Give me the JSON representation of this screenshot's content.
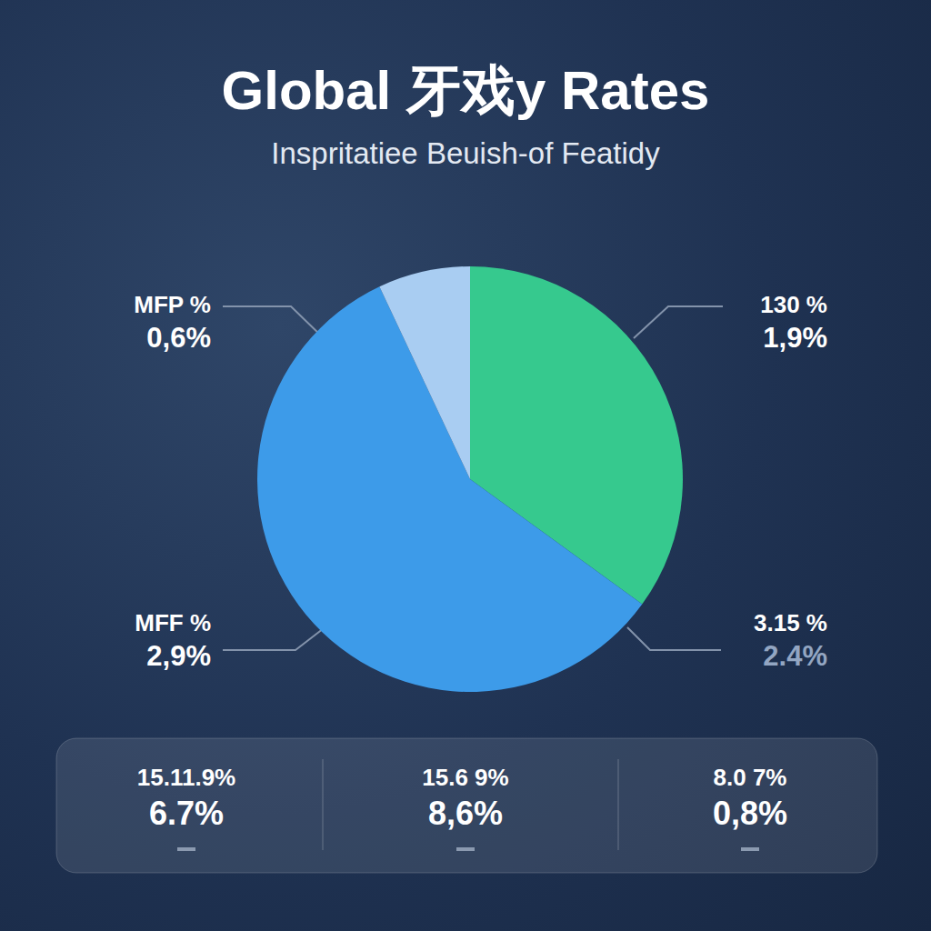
{
  "chart_data": {
    "type": "pie",
    "title": "Global 牙戏y Rates",
    "subtitle": "Inspritatiee Beuish-of Featidy",
    "values": [
      35,
      58,
      7
    ],
    "colors": [
      "#36c98e",
      "#3d9be9",
      "#a9cdf2"
    ],
    "data_labels": false,
    "annotations": [
      {
        "label": "MFP %",
        "text": "0,6%"
      },
      {
        "label": "130 %",
        "text": "1,9%"
      },
      {
        "label": "MFF %",
        "text": "2,9%"
      },
      {
        "label": "3.15 %",
        "text": "2.4%",
        "color": "#93a6c2"
      }
    ],
    "stats": [
      {
        "label": "15.11.9%",
        "text": "6.7%"
      },
      {
        "label": "15.6 9%",
        "text": "8,6%"
      },
      {
        "label": "8.0 7%",
        "text": "0,8%"
      }
    ]
  }
}
